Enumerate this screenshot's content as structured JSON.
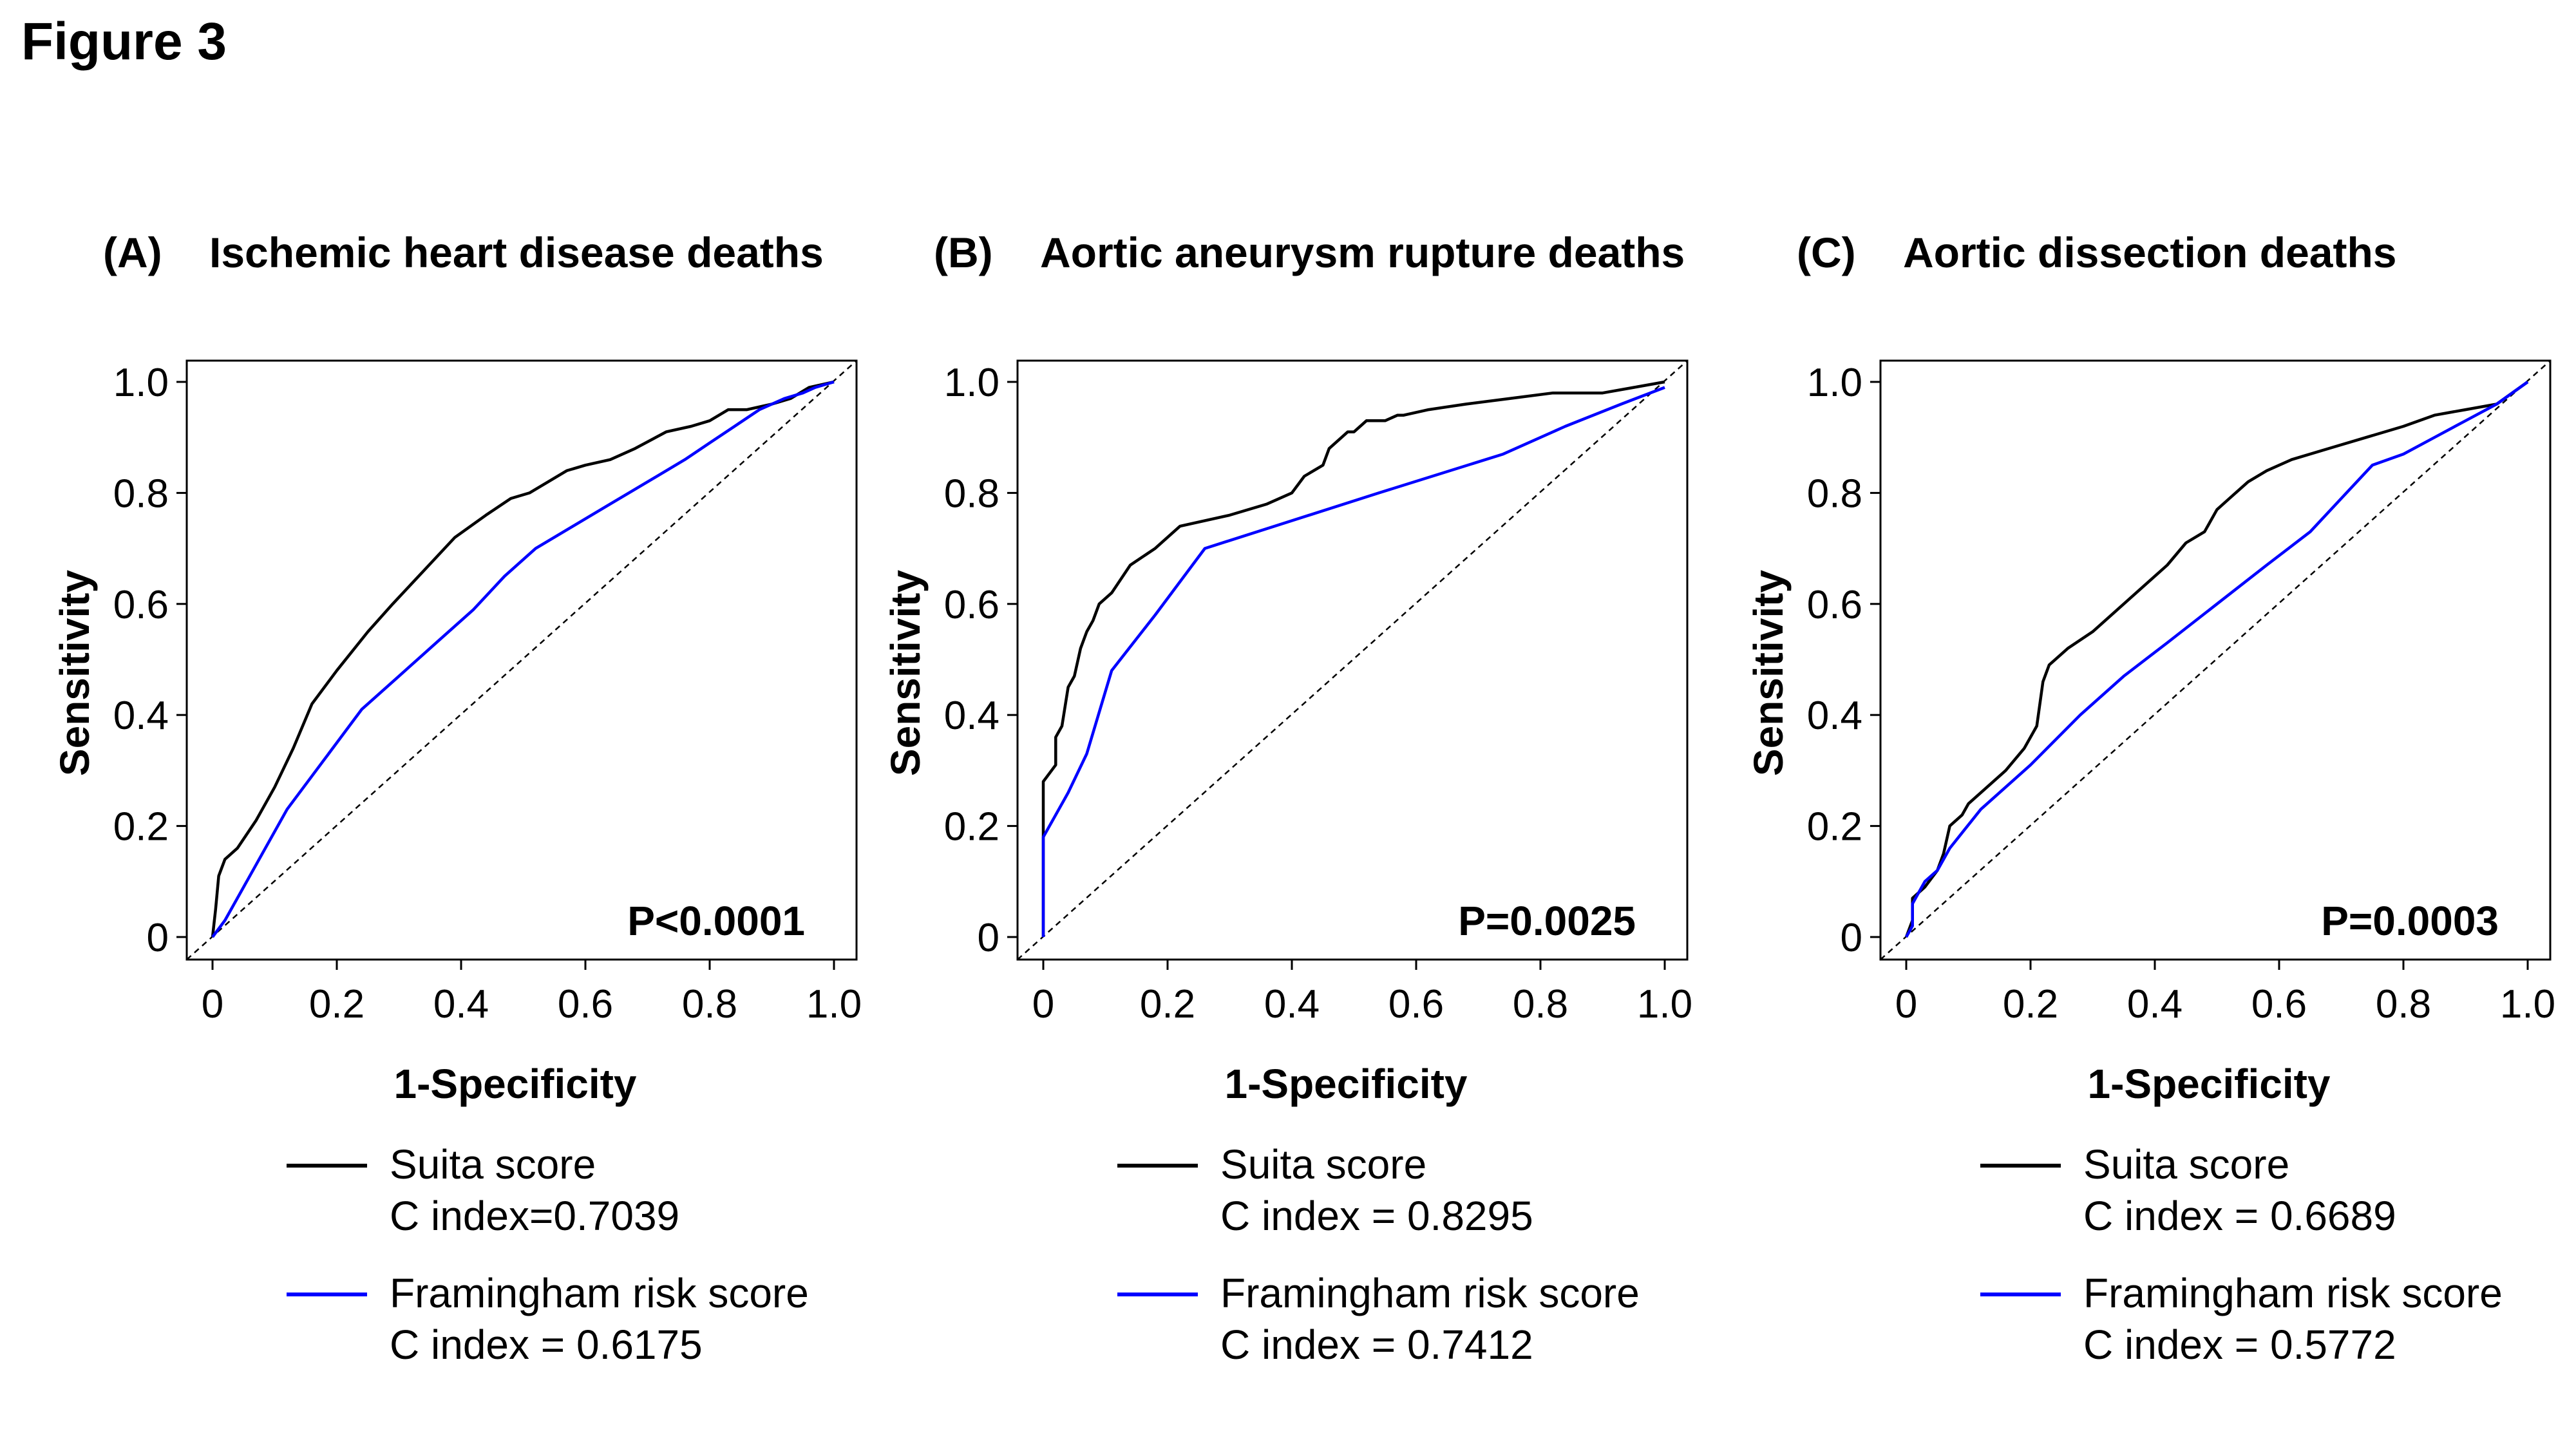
{
  "figure_title": "Figure 3",
  "colors": {
    "suita": "#000000",
    "framingham": "#0000ff",
    "diagonal": "#000000"
  },
  "chart_data": [
    {
      "type": "line",
      "panel_label": "(A)",
      "title": "Ischemic heart disease deaths",
      "xlabel": "1-Specificity",
      "ylabel": "Sensitivity",
      "xlim": [
        0,
        1
      ],
      "ylim": [
        0,
        1
      ],
      "xticks": [
        "0",
        "0.2",
        "0.4",
        "0.6",
        "0.8",
        "1.0"
      ],
      "yticks": [
        "0",
        "0.2",
        "0.4",
        "0.6",
        "0.8",
        "1.0"
      ],
      "p_value": "P<0.0001",
      "series": [
        {
          "name": "Suita score",
          "c_index": "C index=0.7039",
          "color": "#000000",
          "x": [
            0,
            0.005,
            0.01,
            0.02,
            0.04,
            0.07,
            0.1,
            0.13,
            0.16,
            0.2,
            0.25,
            0.29,
            0.34,
            0.39,
            0.44,
            0.48,
            0.51,
            0.54,
            0.57,
            0.6,
            0.64,
            0.68,
            0.73,
            0.77,
            0.8,
            0.83,
            0.86,
            0.9,
            0.93,
            0.96,
            1.0
          ],
          "y": [
            0,
            0.05,
            0.11,
            0.14,
            0.16,
            0.21,
            0.27,
            0.34,
            0.42,
            0.48,
            0.55,
            0.6,
            0.66,
            0.72,
            0.76,
            0.79,
            0.8,
            0.82,
            0.84,
            0.85,
            0.86,
            0.88,
            0.91,
            0.92,
            0.93,
            0.95,
            0.95,
            0.96,
            0.97,
            0.99,
            1.0
          ]
        },
        {
          "name": "Framingham risk score",
          "c_index": "C index = 0.6175",
          "color": "#0000ff",
          "x": [
            0,
            0.02,
            0.05,
            0.08,
            0.12,
            0.18,
            0.24,
            0.3,
            0.36,
            0.42,
            0.47,
            0.52,
            0.58,
            0.64,
            0.7,
            0.76,
            0.8,
            0.84,
            0.88,
            0.92,
            0.95,
            0.97,
            1.0
          ],
          "y": [
            0,
            0.03,
            0.09,
            0.15,
            0.23,
            0.32,
            0.41,
            0.47,
            0.53,
            0.59,
            0.65,
            0.7,
            0.74,
            0.78,
            0.82,
            0.86,
            0.89,
            0.92,
            0.95,
            0.97,
            0.98,
            0.99,
            1.0
          ]
        }
      ]
    },
    {
      "type": "line",
      "panel_label": "(B)",
      "title": "Aortic aneurysm rupture deaths",
      "xlabel": "1-Specificity",
      "ylabel": "Sensitivity",
      "xlim": [
        0,
        1
      ],
      "ylim": [
        0,
        1
      ],
      "xticks": [
        "0",
        "0.2",
        "0.4",
        "0.6",
        "0.8",
        "1.0"
      ],
      "yticks": [
        "0",
        "0.2",
        "0.4",
        "0.6",
        "0.8",
        "1.0"
      ],
      "p_value": "P=0.0025",
      "series": [
        {
          "name": "Suita score",
          "c_index": "C index = 0.8295",
          "color": "#000000",
          "x": [
            0,
            0,
            0.02,
            0.02,
            0.03,
            0.04,
            0.05,
            0.06,
            0.07,
            0.08,
            0.09,
            0.11,
            0.14,
            0.18,
            0.22,
            0.3,
            0.36,
            0.4,
            0.42,
            0.45,
            0.46,
            0.48,
            0.49,
            0.5,
            0.52,
            0.55,
            0.57,
            0.58,
            0.62,
            0.68,
            0.75,
            0.82,
            0.9,
            0.95,
            1.0
          ],
          "y": [
            0,
            0.28,
            0.31,
            0.36,
            0.38,
            0.45,
            0.47,
            0.52,
            0.55,
            0.57,
            0.6,
            0.62,
            0.67,
            0.7,
            0.74,
            0.76,
            0.78,
            0.8,
            0.83,
            0.85,
            0.88,
            0.9,
            0.91,
            0.91,
            0.93,
            0.93,
            0.94,
            0.94,
            0.95,
            0.96,
            0.97,
            0.98,
            0.98,
            0.99,
            1.0
          ]
        },
        {
          "name": "Framingham risk score",
          "c_index": "C index = 0.7412",
          "color": "#0000ff",
          "x": [
            0,
            0,
            0.04,
            0.07,
            0.11,
            0.18,
            0.26,
            0.4,
            0.54,
            0.74,
            0.84,
            0.93,
            1.0
          ],
          "y": [
            0,
            0.18,
            0.26,
            0.33,
            0.48,
            0.58,
            0.7,
            0.75,
            0.8,
            0.87,
            0.92,
            0.96,
            0.99
          ]
        }
      ]
    },
    {
      "type": "line",
      "panel_label": "(C)",
      "title": "Aortic dissection deaths",
      "xlabel": "1-Specificity",
      "ylabel": "Sensitivity",
      "xlim": [
        0,
        1
      ],
      "ylim": [
        0,
        1
      ],
      "xticks": [
        "0",
        "0.2",
        "0.4",
        "0.6",
        "0.8",
        "1.0"
      ],
      "yticks": [
        "0",
        "0.2",
        "0.4",
        "0.6",
        "0.8",
        "1.0"
      ],
      "p_value": "P=0.0003",
      "series": [
        {
          "name": "Suita score",
          "c_index": "C index = 0.6689",
          "color": "#000000",
          "x": [
            0,
            0.01,
            0.01,
            0.03,
            0.05,
            0.06,
            0.07,
            0.09,
            0.1,
            0.13,
            0.16,
            0.19,
            0.21,
            0.22,
            0.23,
            0.26,
            0.3,
            0.34,
            0.38,
            0.42,
            0.45,
            0.48,
            0.5,
            0.52,
            0.55,
            0.58,
            0.62,
            0.68,
            0.74,
            0.8,
            0.85,
            0.9,
            0.95,
            1.0
          ],
          "y": [
            0,
            0.03,
            0.07,
            0.09,
            0.12,
            0.15,
            0.2,
            0.22,
            0.24,
            0.27,
            0.3,
            0.34,
            0.38,
            0.46,
            0.49,
            0.52,
            0.55,
            0.59,
            0.63,
            0.67,
            0.71,
            0.73,
            0.77,
            0.79,
            0.82,
            0.84,
            0.86,
            0.88,
            0.9,
            0.92,
            0.94,
            0.95,
            0.96,
            1.0
          ]
        },
        {
          "name": "Framingham risk score",
          "c_index": "C index = 0.5772",
          "color": "#0000ff",
          "x": [
            0,
            0.01,
            0.01,
            0.03,
            0.05,
            0.07,
            0.12,
            0.2,
            0.28,
            0.35,
            0.42,
            0.5,
            0.58,
            0.65,
            0.7,
            0.75,
            0.8,
            0.85,
            0.9,
            0.95,
            1.0
          ],
          "y": [
            0,
            0.02,
            0.06,
            0.1,
            0.12,
            0.16,
            0.23,
            0.31,
            0.4,
            0.47,
            0.53,
            0.6,
            0.67,
            0.73,
            0.79,
            0.85,
            0.87,
            0.9,
            0.93,
            0.96,
            1.0
          ]
        }
      ]
    }
  ]
}
